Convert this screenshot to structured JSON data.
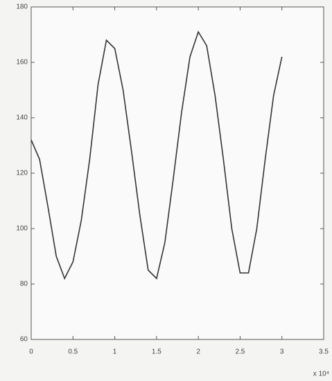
{
  "chart_data": {
    "type": "line",
    "x": [
      0,
      0.1,
      0.2,
      0.3,
      0.4,
      0.5,
      0.6,
      0.7,
      0.8,
      0.9,
      1.0,
      1.1,
      1.2,
      1.3,
      1.4,
      1.5,
      1.6,
      1.7,
      1.8,
      1.9,
      2.0,
      2.1,
      2.2,
      2.3,
      2.4,
      2.5,
      2.6,
      2.7,
      2.8,
      2.9,
      3.0
    ],
    "series": [
      {
        "color": "#333333",
        "values": [
          132,
          125,
          108,
          90,
          82,
          88,
          103,
          125,
          152,
          168,
          165,
          150,
          128,
          105,
          85,
          82,
          95,
          118,
          142,
          162,
          171,
          166,
          148,
          125,
          100,
          84,
          84,
          100,
          125,
          148,
          162
        ]
      }
    ],
    "xlim": [
      0,
      3.5
    ],
    "xticks": [
      0,
      0.5,
      1,
      1.5,
      2,
      2.5,
      3,
      3.5
    ],
    "ylim": [
      60,
      180
    ],
    "yticks": [
      60,
      80,
      100,
      120,
      140,
      160,
      180
    ],
    "annotation": "x 10⁴"
  }
}
